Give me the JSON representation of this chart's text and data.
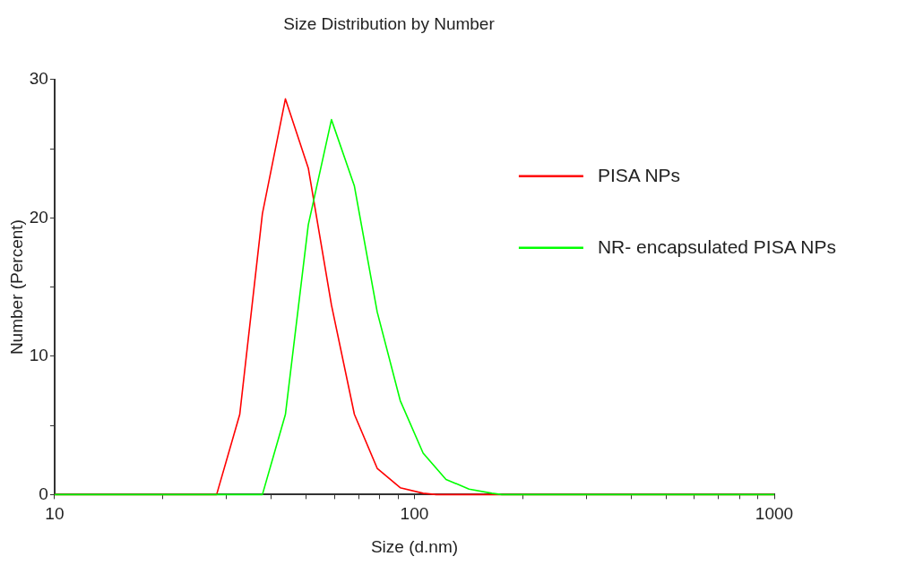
{
  "chart_data": {
    "type": "line",
    "title": "Size Distribution by Number",
    "xlabel": "Size (d.nm)",
    "ylabel": "Number (Percent)",
    "log": "x",
    "xlim": [
      10,
      1000
    ],
    "xticks": [
      10,
      {
        "value": 20,
        "label": null
      },
      {
        "value": 30,
        "label": null
      },
      {
        "value": 40,
        "label": null
      },
      {
        "value": 50,
        "label": null
      },
      {
        "value": 60,
        "label": null
      },
      {
        "value": 70,
        "label": null
      },
      {
        "value": 80,
        "label": null
      },
      {
        "value": 90,
        "label": null
      },
      100,
      {
        "value": 200,
        "label": null
      },
      {
        "value": 300,
        "label": null
      },
      {
        "value": 400,
        "label": null
      },
      {
        "value": 500,
        "label": null
      },
      {
        "value": 600,
        "label": null
      },
      {
        "value": 700,
        "label": null
      },
      {
        "value": 800,
        "label": null
      },
      {
        "value": 900,
        "label": null
      },
      1000
    ],
    "ylim": [
      0,
      30
    ],
    "yticks": [
      0,
      {
        "value": 5,
        "label": null
      },
      10,
      {
        "value": 15,
        "label": null
      },
      20,
      {
        "value": 25,
        "label": null
      },
      30
    ],
    "grid": false,
    "legend": "right",
    "marker": "none",
    "line_style": "solid",
    "series": [
      {
        "name": "PISA NPs",
        "color": "#ff0000",
        "x": [
          10,
          28.2,
          32.7,
          37.8,
          43.8,
          50.7,
          58.8,
          68.1,
          78.8,
          91.3,
          105.7,
          115,
          1000
        ],
        "values": [
          0,
          0,
          5.8,
          20.3,
          28.6,
          23.6,
          13.7,
          5.8,
          1.9,
          0.5,
          0.1,
          0,
          0
        ]
      },
      {
        "name": "NR- encapsulated PISA NPs",
        "color": "#00ff00",
        "x": [
          10,
          37.8,
          43.8,
          50.7,
          58.8,
          68.1,
          78.8,
          91.3,
          105.7,
          122.4,
          141.8,
          164.2,
          175,
          1000
        ],
        "values": [
          0,
          0,
          5.8,
          19.5,
          27.1,
          22.3,
          13.2,
          6.8,
          3.0,
          1.1,
          0.4,
          0.1,
          0,
          0
        ]
      }
    ]
  }
}
